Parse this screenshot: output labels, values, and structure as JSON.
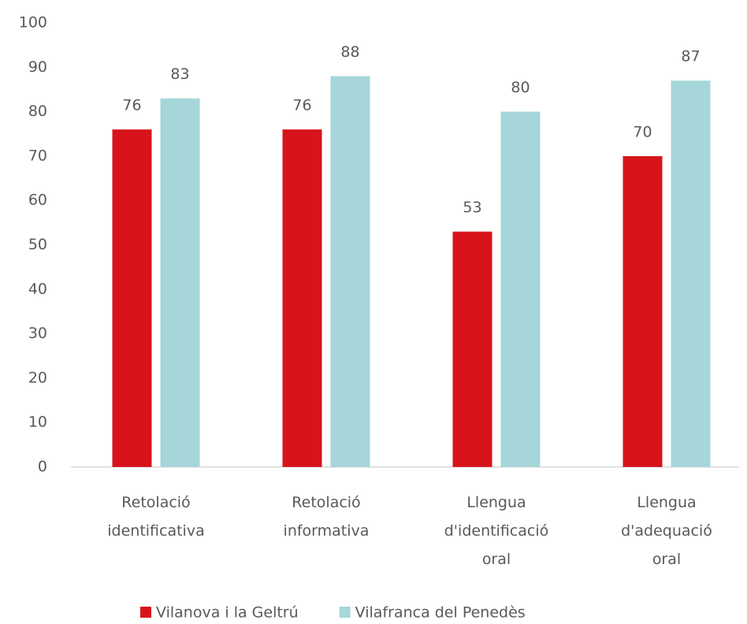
{
  "chart_data": {
    "type": "bar",
    "categories": [
      "Retolació identificativa",
      "Retolació informativa",
      "Llengua d'identificació oral",
      "Llengua d'adequació oral"
    ],
    "series": [
      {
        "name": "Vilanova i la Geltrú",
        "color": "#d7141c",
        "values": [
          76,
          76,
          53,
          70
        ]
      },
      {
        "name": "Vilafranca del Penedès",
        "color": "#a6d6d9",
        "values": [
          83,
          88,
          80,
          87
        ]
      }
    ],
    "ylim": [
      0,
      100
    ],
    "yticks": [
      0,
      10,
      20,
      30,
      40,
      50,
      60,
      70,
      80,
      90,
      100
    ],
    "legend": "bottom"
  }
}
